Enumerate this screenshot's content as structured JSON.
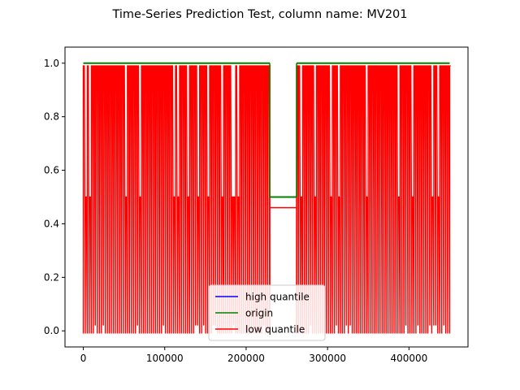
{
  "chart_data": {
    "type": "line",
    "title": "Time-Series Prediction Test, column name: MV201",
    "xlabel": "",
    "ylabel": "",
    "xlim": [
      -22500,
      472500
    ],
    "ylim": [
      -0.06,
      1.06
    ],
    "x_ticks": [
      0,
      100000,
      200000,
      300000,
      400000
    ],
    "x_tick_labels": [
      "0",
      "100000",
      "200000",
      "300000",
      "400000"
    ],
    "y_ticks": [
      0.0,
      0.2,
      0.4,
      0.6,
      0.8,
      1.0
    ],
    "y_tick_labels": [
      "0.0",
      "0.2",
      "0.4",
      "0.6",
      "0.8",
      "1.0"
    ],
    "grid": false,
    "legend_position": "lower center",
    "series": [
      {
        "name": "high quantile",
        "color": "#0000ff",
        "values": []
      },
      {
        "name": "origin",
        "color": "#008000",
        "segments": [
          {
            "x": [
              0,
              229000
            ],
            "y": [
              1.0,
              1.0
            ]
          },
          {
            "x": [
              229000,
              262000
            ],
            "y": [
              0.5,
              0.5
            ]
          },
          {
            "x": [
              262000,
              450000
            ],
            "y": [
              1.0,
              1.0
            ]
          }
        ]
      },
      {
        "name": "low quantile",
        "color": "#ff0000",
        "oscillation_range": [
          -0.01,
          0.99
        ],
        "oscillation_x_ranges": [
          [
            0,
            229000
          ],
          [
            262000,
            450000
          ]
        ],
        "flat_segment": {
          "x": [
            229000,
            262000
          ],
          "y": [
            0.46,
            0.46
          ]
        },
        "approx_spike_count": 170
      }
    ]
  }
}
